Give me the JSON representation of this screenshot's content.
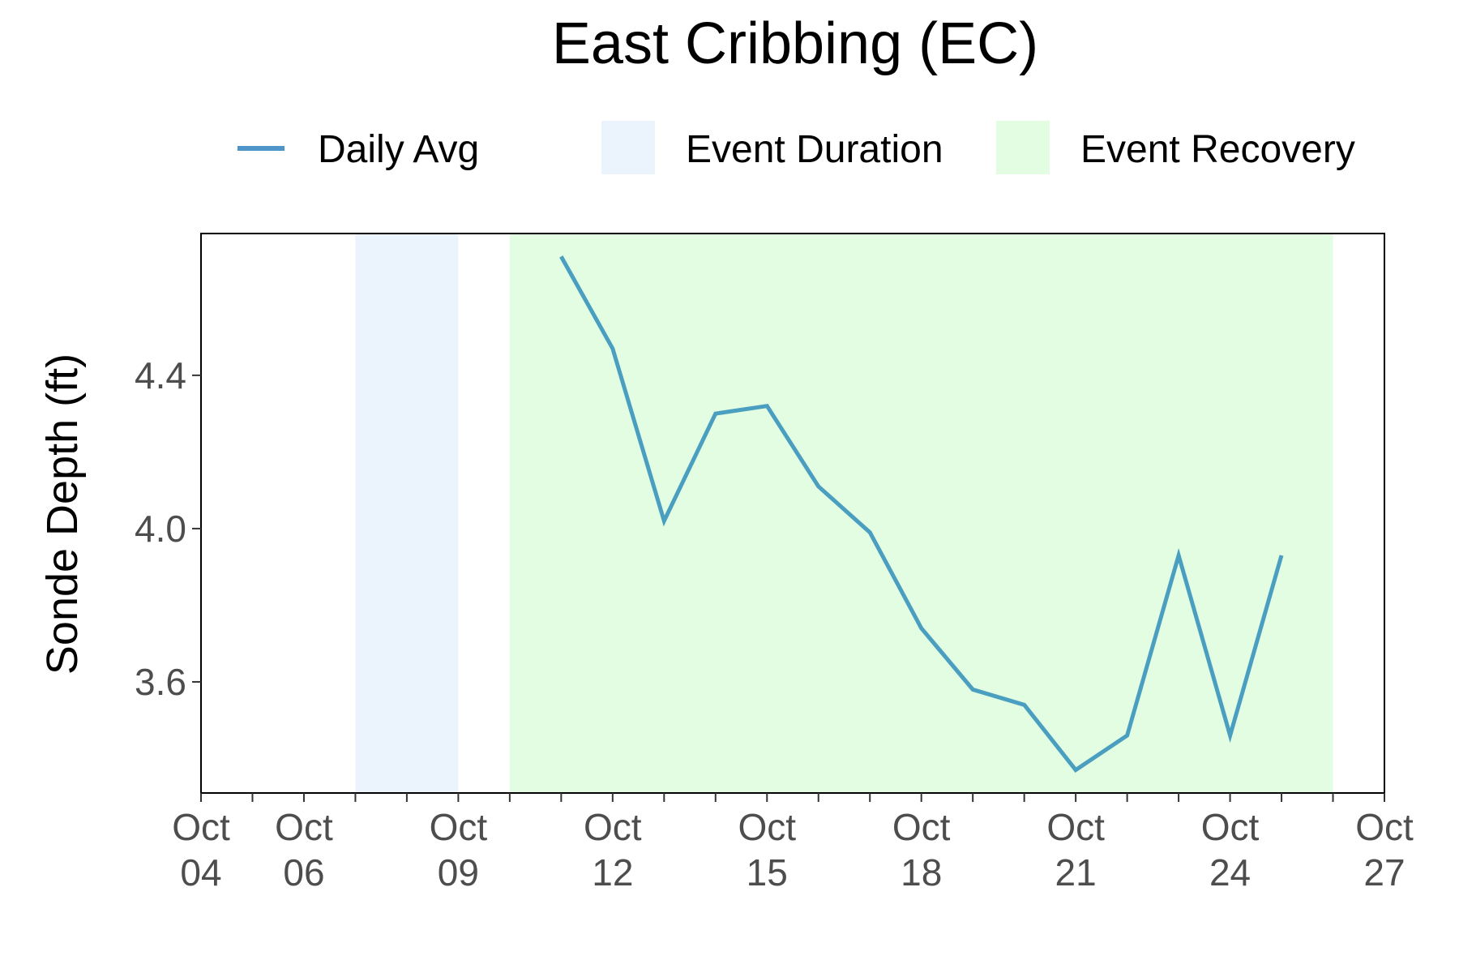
{
  "chart_data": {
    "type": "line",
    "title": "East Cribbing (EC)",
    "xlabel": "",
    "ylabel": "Sonde Depth (ft)",
    "xlim": [
      "2023-10-04",
      "2023-10-27"
    ],
    "ylim": [
      3.31,
      4.77
    ],
    "x_ticks": [
      {
        "date": "2023-10-04",
        "line1": "Oct",
        "line2": "04"
      },
      {
        "date": "2023-10-06",
        "line1": "Oct",
        "line2": "06"
      },
      {
        "date": "2023-10-09",
        "line1": "Oct",
        "line2": "09"
      },
      {
        "date": "2023-10-12",
        "line1": "Oct",
        "line2": "12"
      },
      {
        "date": "2023-10-15",
        "line1": "Oct",
        "line2": "15"
      },
      {
        "date": "2023-10-18",
        "line1": "Oct",
        "line2": "18"
      },
      {
        "date": "2023-10-21",
        "line1": "Oct",
        "line2": "21"
      },
      {
        "date": "2023-10-24",
        "line1": "Oct",
        "line2": "24"
      },
      {
        "date": "2023-10-27",
        "line1": "Oct",
        "line2": "27"
      }
    ],
    "y_ticks": [
      {
        "value": 3.6,
        "label": "3.6"
      },
      {
        "value": 4.0,
        "label": "4.0"
      },
      {
        "value": 4.4,
        "label": "4.4"
      }
    ],
    "legend_position": "top",
    "grid": false,
    "series": [
      {
        "name": "Daily Avg",
        "color": "#4a9fc0",
        "x": [
          "2023-10-11",
          "2023-10-12",
          "2023-10-13",
          "2023-10-14",
          "2023-10-15",
          "2023-10-16",
          "2023-10-17",
          "2023-10-18",
          "2023-10-19",
          "2023-10-20",
          "2023-10-21",
          "2023-10-22",
          "2023-10-23",
          "2023-10-24",
          "2023-10-25"
        ],
        "values": [
          4.71,
          4.47,
          4.02,
          4.3,
          4.32,
          4.11,
          3.99,
          3.74,
          3.58,
          3.54,
          3.37,
          3.46,
          3.93,
          3.46,
          3.93
        ]
      }
    ],
    "bands": [
      {
        "name": "Event Duration",
        "start": "2023-10-07",
        "end": "2023-10-09",
        "color": "#ebf4fc"
      },
      {
        "name": "Event Recovery",
        "start": "2023-10-10",
        "end": "2023-10-26",
        "color": "#e2fde2"
      }
    ],
    "legend_swatch_colors": {
      "Daily Avg": "#4f95c9"
    }
  }
}
